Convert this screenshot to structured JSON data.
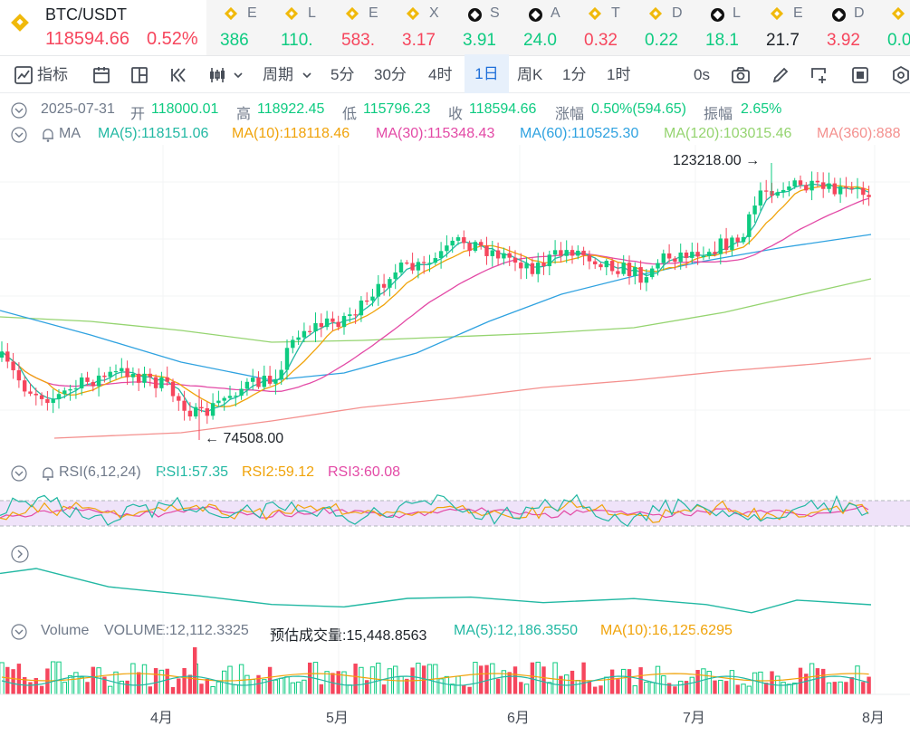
{
  "ticker": {
    "main": {
      "symbol": "BTC/USDT",
      "price": "118594.66",
      "change": "0.52%"
    },
    "items": [
      {
        "icon": "bnb-coin-icon",
        "sym": "E",
        "val": "386",
        "dir": "up"
      },
      {
        "icon": "bnb-coin-icon",
        "sym": "L",
        "val": "110.",
        "dir": "up"
      },
      {
        "icon": "bnb-coin-icon",
        "sym": "E",
        "val": "583.",
        "dir": "down"
      },
      {
        "icon": "bnb-coin-icon",
        "sym": "X",
        "val": "3.17",
        "dir": "down"
      },
      {
        "icon": "okx-coin-icon",
        "sym": "S",
        "val": "3.91",
        "dir": "up"
      },
      {
        "icon": "okx-coin-icon",
        "sym": "A",
        "val": "24.0",
        "dir": "up"
      },
      {
        "icon": "bnb-coin-icon",
        "sym": "T",
        "val": "0.32",
        "dir": "down"
      },
      {
        "icon": "bnb-coin-icon",
        "sym": "D",
        "val": "0.22",
        "dir": "up"
      },
      {
        "icon": "okx-coin-icon",
        "sym": "L",
        "val": "18.1",
        "dir": "up"
      },
      {
        "icon": "bnb-coin-icon",
        "sym": "E",
        "val": "21.7",
        "dir": "neutral"
      },
      {
        "icon": "okx-coin-icon",
        "sym": "D",
        "val": "3.92",
        "dir": "down"
      },
      {
        "icon": "bnb-coin-icon",
        "sym": "",
        "val": "0.0",
        "dir": "up"
      }
    ]
  },
  "toolbar": {
    "indicators": "指标",
    "period": "周期",
    "intervals": [
      "5分",
      "30分",
      "4时",
      "1日",
      "周K",
      "1分",
      "1时"
    ],
    "active_interval": "1日",
    "seconds": "0s"
  },
  "ohlc": {
    "date": "2025-07-31",
    "open_label": "开",
    "open": "118000.01",
    "high_label": "高",
    "high": "118922.45",
    "low_label": "低",
    "low": "115796.23",
    "close_label": "收",
    "close": "118594.66",
    "chg_label": "涨幅",
    "chg": "0.50%(594.65)",
    "amp_label": "振幅",
    "amp": "2.65%"
  },
  "ma": {
    "label": "MA",
    "ma5": "MA(5):118151.06",
    "ma10": "MA(10):118118.46",
    "ma30": "MA(30):115348.43",
    "ma60": "MA(60):110525.30",
    "ma120": "MA(120):103015.46",
    "ma360": "MA(360):888"
  },
  "rsi": {
    "label": "RSI(6,12,24)",
    "rsi1": "RSI1:57.35",
    "rsi2": "RSI2:59.12",
    "rsi3": "RSI3:60.08"
  },
  "volume": {
    "label": "Volume",
    "vol": "VOLUME:12,112.3325",
    "est": "预估成交量:15,448.8563",
    "ma5": "MA(5):12,186.3550",
    "ma10": "MA(10):16,125.6295"
  },
  "annotations": {
    "high": "123218.00",
    "low": "74508.00"
  },
  "colors": {
    "up": "#0ecb81",
    "down": "#f6465d",
    "ma5": "#22b8a3",
    "ma10": "#f0a30a",
    "ma30": "#e34aa6",
    "ma60": "#2fa2e0",
    "ma120": "#95d470",
    "ma360": "#f4908e"
  },
  "chart_data": {
    "type": "candlestick",
    "title": "BTC/USDT",
    "x_labels": [
      "4月",
      "5月",
      "6月",
      "7月",
      "8月"
    ],
    "visible_high": 123218.0,
    "visible_low": 74508.0
  }
}
